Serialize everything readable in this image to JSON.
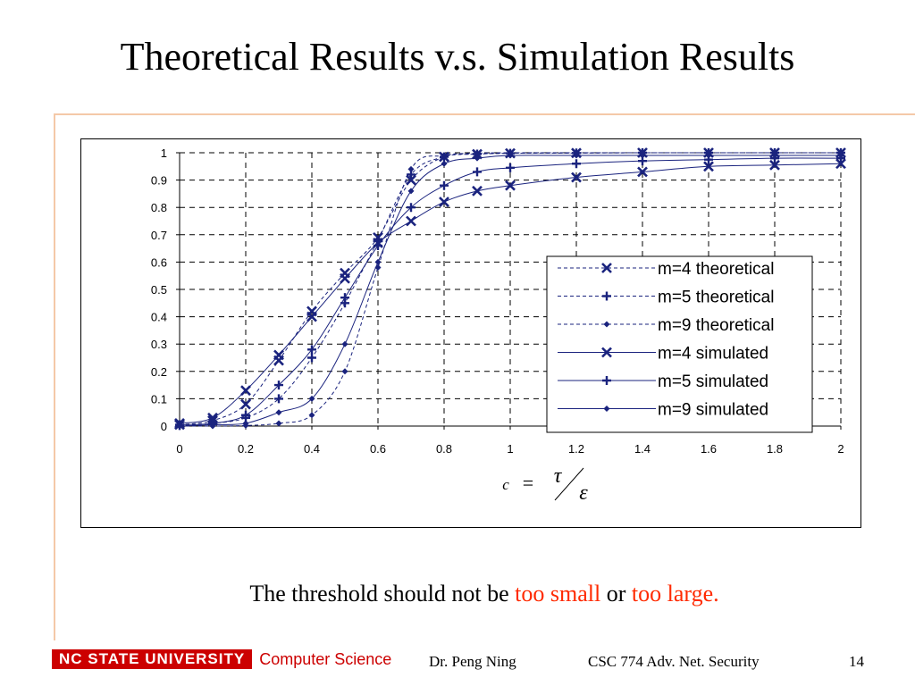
{
  "slide": {
    "title": "Theoretical Results v.s. Simulation Results",
    "caption_plain_1": "The threshold should not be ",
    "caption_emph_1": "too small",
    "caption_plain_2": " or ",
    "caption_emph_2": "too large."
  },
  "footer": {
    "university": "NC STATE UNIVERSITY",
    "department": "Computer Science",
    "author": "Dr. Peng Ning",
    "course": "CSC 774 Adv. Net. Security",
    "page_number": "14"
  },
  "colors": {
    "series": "#1a237e",
    "accent_rule": "#f4c9a8",
    "emphasis": "#ff2a00",
    "brand": "#cc0000"
  },
  "chart_data": {
    "type": "line",
    "xlabel_parts": {
      "left": "c",
      "equals": "=",
      "num": "τ",
      "den": "ε"
    },
    "xlim": [
      0,
      2
    ],
    "ylim": [
      0,
      1
    ],
    "xticks": [
      "0",
      "0.2",
      "0.4",
      "0.6",
      "0.8",
      "1",
      "1.2",
      "1.4",
      "1.6",
      "1.8",
      "2"
    ],
    "yticks": [
      "0",
      "0.1",
      "0.2",
      "0.3",
      "0.4",
      "0.5",
      "0.6",
      "0.7",
      "0.8",
      "0.9",
      "1"
    ],
    "grid": true,
    "legend_position": "right",
    "x": [
      0,
      0.1,
      0.2,
      0.3,
      0.4,
      0.5,
      0.6,
      0.7,
      0.8,
      0.9,
      1,
      1.2,
      1.4,
      1.6,
      1.8,
      2
    ],
    "series": [
      {
        "name": "m=4 theoretical",
        "style": "dashed",
        "marker": "x",
        "values": [
          0.005,
          0.02,
          0.08,
          0.24,
          0.42,
          0.56,
          0.69,
          0.9,
          0.985,
          0.995,
          0.998,
          0.999,
          1.0,
          1.0,
          1.0,
          1.0
        ]
      },
      {
        "name": "m=5 theoretical",
        "style": "dashed",
        "marker": "plus",
        "values": [
          0.002,
          0.01,
          0.03,
          0.1,
          0.25,
          0.45,
          0.68,
          0.92,
          0.985,
          0.995,
          0.998,
          0.999,
          1.0,
          1.0,
          1.0,
          1.0
        ]
      },
      {
        "name": "m=9 theoretical",
        "style": "dashed",
        "marker": "diamond",
        "values": [
          0.0,
          0.0,
          0.002,
          0.01,
          0.04,
          0.2,
          0.58,
          0.94,
          0.99,
          0.998,
          1.0,
          1.0,
          1.0,
          1.0,
          1.0,
          1.0
        ]
      },
      {
        "name": "m=4 simulated",
        "style": "solid",
        "marker": "x",
        "values": [
          0.01,
          0.03,
          0.13,
          0.26,
          0.4,
          0.54,
          0.67,
          0.75,
          0.82,
          0.86,
          0.88,
          0.91,
          0.93,
          0.95,
          0.955,
          0.96
        ]
      },
      {
        "name": "m=5 simulated",
        "style": "solid",
        "marker": "plus",
        "values": [
          0.005,
          0.01,
          0.04,
          0.15,
          0.28,
          0.47,
          0.66,
          0.8,
          0.88,
          0.93,
          0.945,
          0.96,
          0.97,
          0.975,
          0.98,
          0.98
        ]
      },
      {
        "name": "m=9 simulated",
        "style": "solid",
        "marker": "diamond",
        "values": [
          0.0,
          0.005,
          0.01,
          0.05,
          0.1,
          0.3,
          0.6,
          0.86,
          0.96,
          0.98,
          0.99,
          0.99,
          0.99,
          0.99,
          0.99,
          0.99
        ]
      }
    ]
  }
}
